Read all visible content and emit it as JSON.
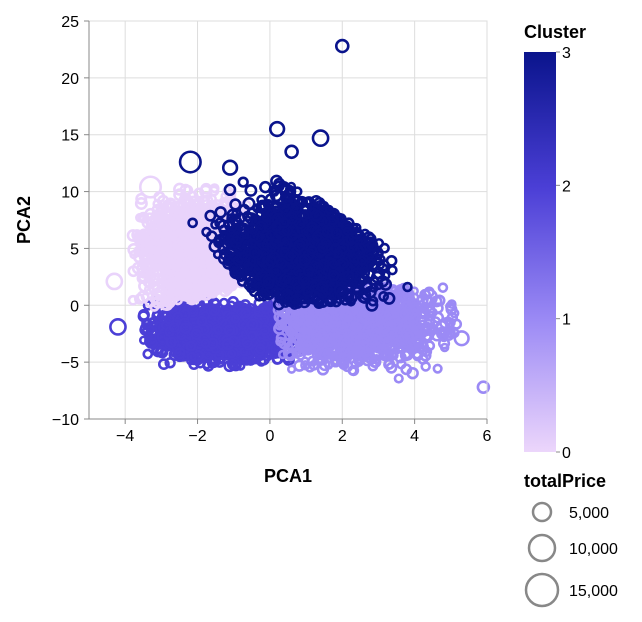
{
  "chart_data": {
    "type": "scatter",
    "xlabel": "PCA1",
    "ylabel": "PCA2",
    "xlim": [
      -5,
      6
    ],
    "ylim": [
      -10,
      25
    ],
    "x_ticks": [
      -4,
      -2,
      0,
      2,
      4,
      6
    ],
    "y_ticks": [
      -10,
      -5,
      0,
      5,
      10,
      15,
      20,
      25
    ],
    "x_tick_labels": [
      "−4",
      "−2",
      "0",
      "2",
      "4",
      "6"
    ],
    "y_tick_labels": [
      "−10",
      "−5",
      "0",
      "5",
      "10",
      "15",
      "20",
      "25"
    ],
    "grid": true,
    "color_legend": {
      "title": "Cluster",
      "min": 0,
      "max": 3,
      "ticks": [
        "0",
        "1",
        "2",
        "3"
      ],
      "colors": [
        "#e9d3fb",
        "#9b8af5",
        "#4b3fd6",
        "#0a148c"
      ]
    },
    "size_legend": {
      "title": "totalPrice",
      "entries": [
        {
          "label": "5,000",
          "value": 5000
        },
        {
          "label": "10,000",
          "value": 10000
        },
        {
          "label": "15,000",
          "value": 15000
        }
      ]
    },
    "clusters": [
      {
        "cluster": 0,
        "color": "#e9d3fb",
        "approx_region": {
          "x": [
            -3.8,
            0
          ],
          "y": [
            0,
            10.5
          ]
        }
      },
      {
        "cluster": 1,
        "color": "#9b8af5",
        "approx_region": {
          "x": [
            0.3,
            5
          ],
          "y": [
            -8,
            1.5
          ]
        }
      },
      {
        "cluster": 2,
        "color": "#4b3fd6",
        "approx_region": {
          "x": [
            -3.5,
            0.8
          ],
          "y": [
            -5.5,
            0.5
          ]
        }
      },
      {
        "cluster": 3,
        "color": "#0a148c",
        "approx_region": {
          "x": [
            -2,
            3.8
          ],
          "y": [
            0,
            11
          ]
        }
      }
    ],
    "highlight_points": [
      {
        "x": 2.0,
        "y": 22.8,
        "cluster": 3,
        "totalPrice": 2000
      },
      {
        "x": 1.4,
        "y": 14.7,
        "cluster": 3,
        "totalPrice": 4000
      },
      {
        "x": 0.2,
        "y": 15.5,
        "cluster": 3,
        "totalPrice": 3000
      },
      {
        "x": -2.2,
        "y": 12.6,
        "cluster": 3,
        "totalPrice": 9000
      },
      {
        "x": 0.6,
        "y": 13.5,
        "cluster": 3,
        "totalPrice": 2000
      },
      {
        "x": -1.1,
        "y": 12.1,
        "cluster": 3,
        "totalPrice": 3000
      },
      {
        "x": -3.3,
        "y": 10.4,
        "cluster": 0,
        "totalPrice": 9000
      },
      {
        "x": -4.3,
        "y": 2.1,
        "cluster": 0,
        "totalPrice": 4000
      },
      {
        "x": -4.2,
        "y": -1.9,
        "cluster": 2,
        "totalPrice": 4000
      },
      {
        "x": 5.9,
        "y": -7.2,
        "cluster": 1,
        "totalPrice": 1500
      },
      {
        "x": 5.3,
        "y": -2.9,
        "cluster": 1,
        "totalPrice": 3000
      },
      {
        "x": 4.4,
        "y": 0.7,
        "cluster": 1,
        "totalPrice": 4000
      }
    ]
  }
}
